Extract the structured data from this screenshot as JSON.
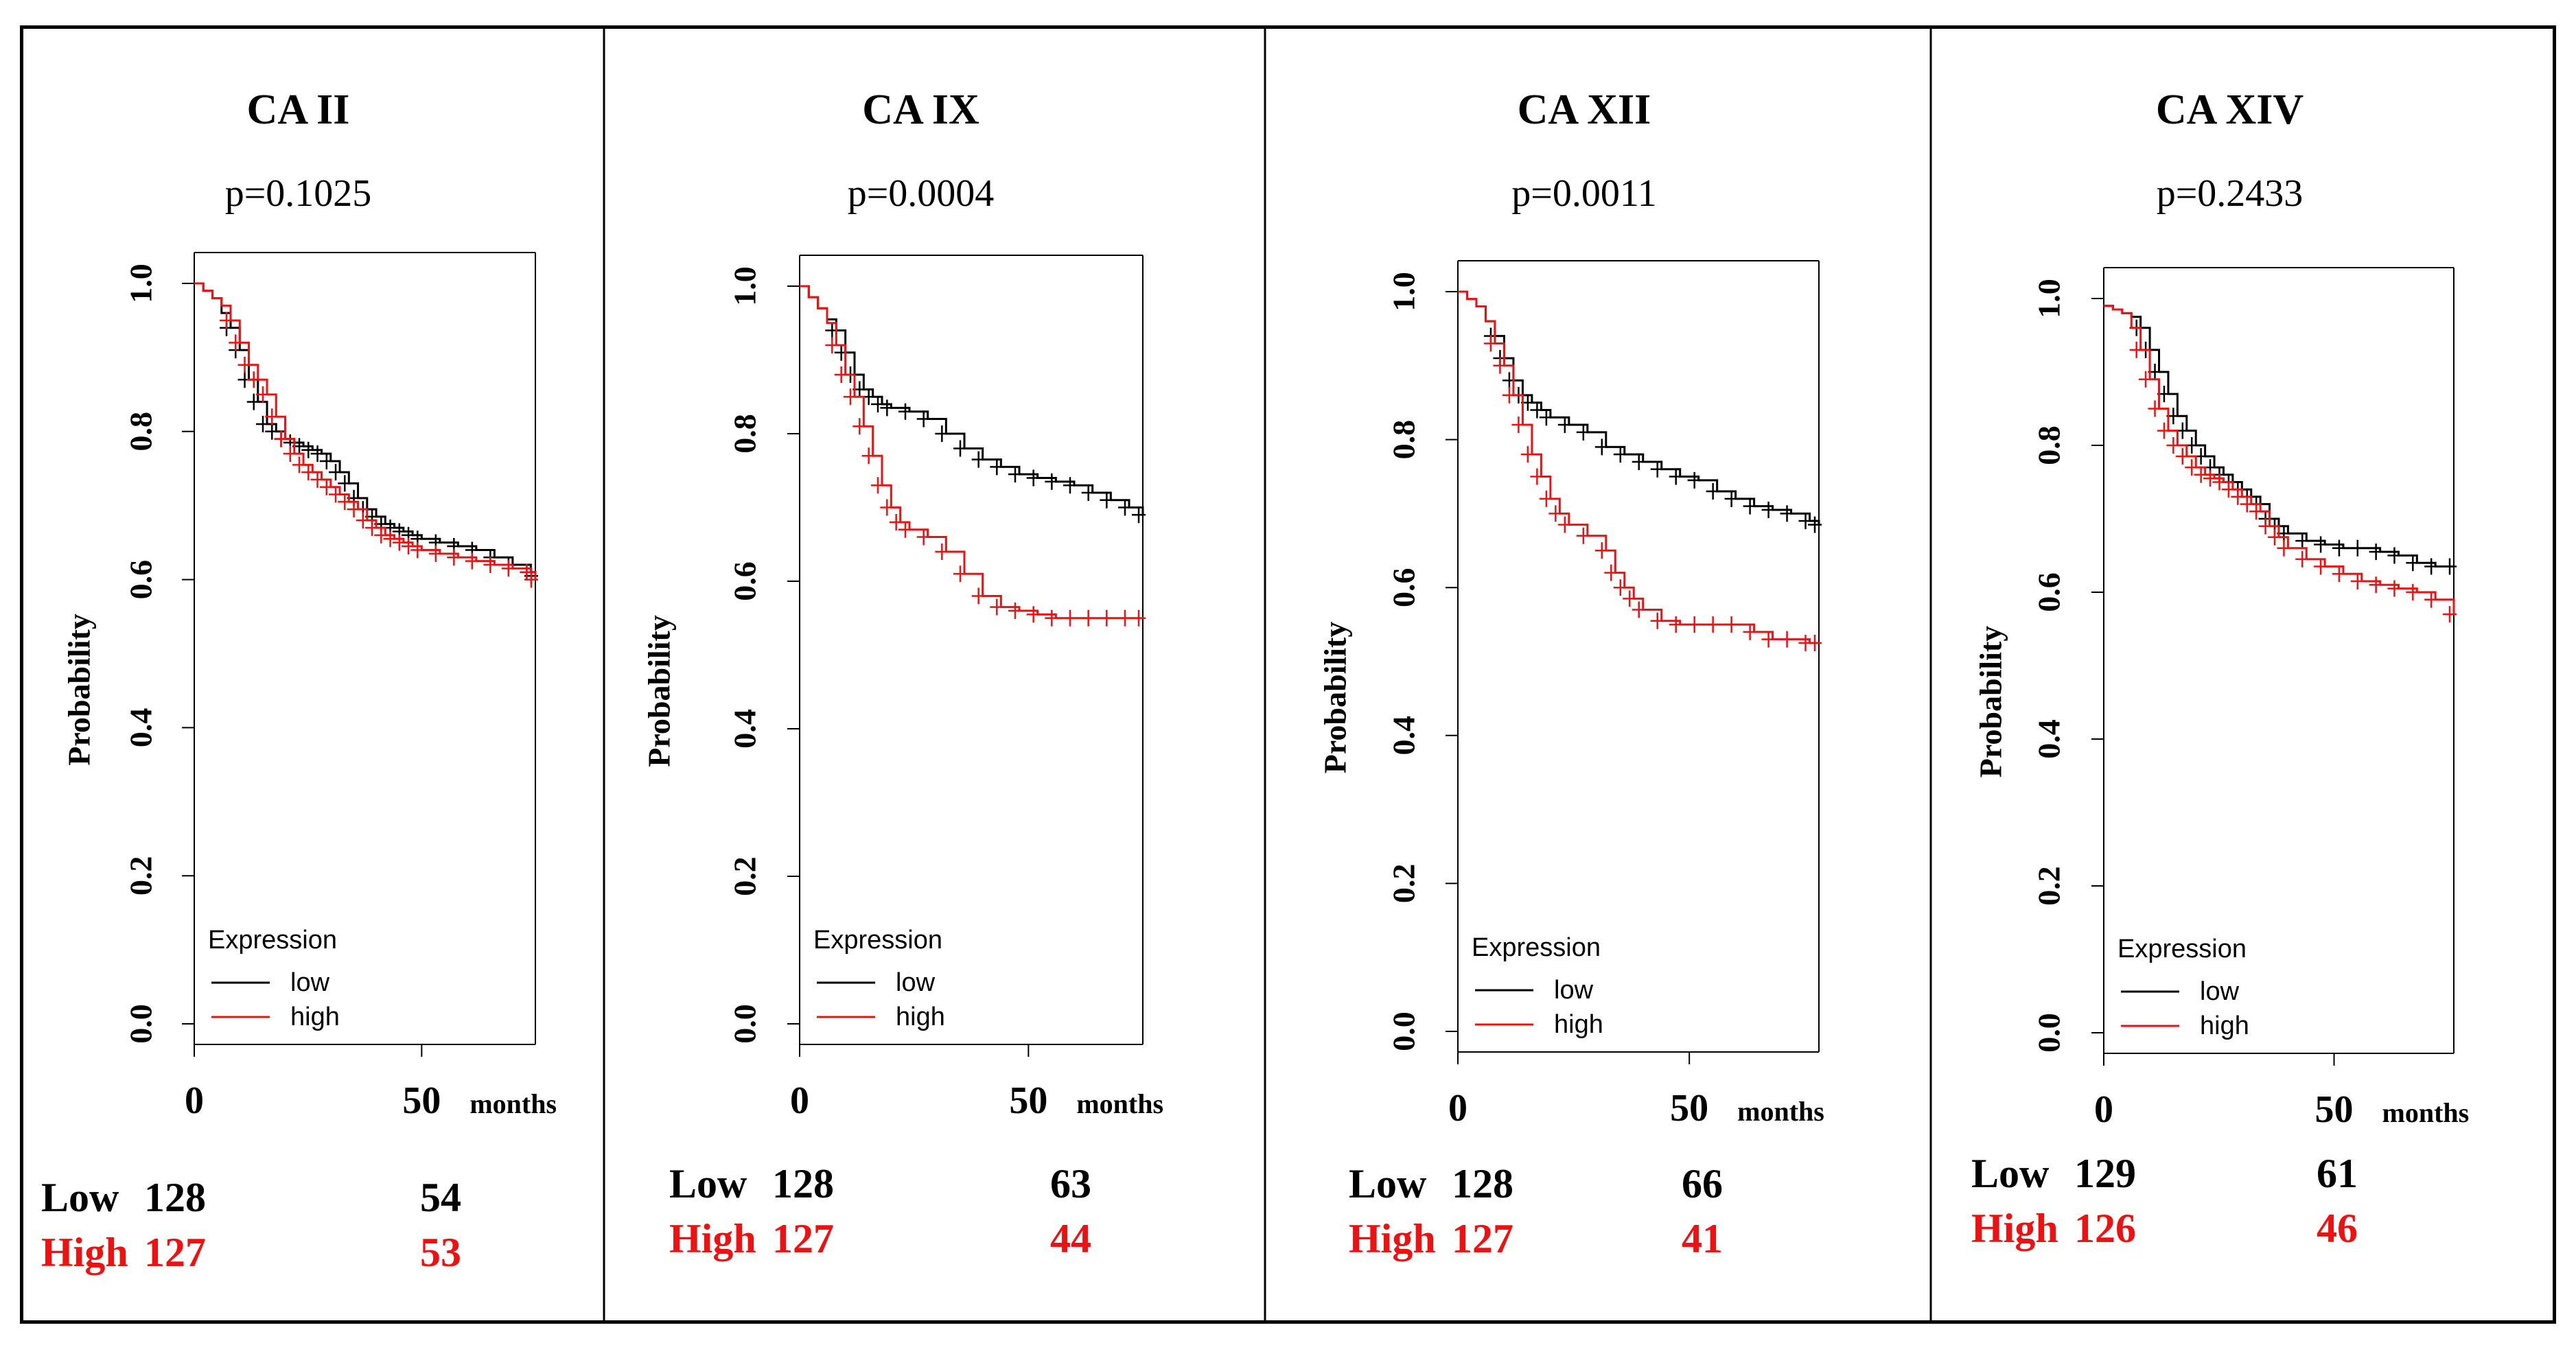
{
  "colors": {
    "low": "#000000",
    "high": "#ee1111"
  },
  "chart_data": [
    {
      "type": "line",
      "title": "CA II",
      "subtitle": "p=0.1025",
      "ylabel": "Probability",
      "xunit": "months",
      "ylim": [
        0,
        1
      ],
      "xlim": [
        0,
        75
      ],
      "yticks": [
        "0.0",
        "0.2",
        "0.4",
        "0.6",
        "0.8",
        "1.0"
      ],
      "xticks": [
        "0",
        "50"
      ],
      "legend": {
        "title": "Expression",
        "items": [
          "low",
          "high"
        ]
      },
      "series": [
        {
          "name": "low",
          "x": [
            0,
            2,
            4,
            6,
            8,
            10,
            12,
            14,
            16,
            18,
            20,
            22,
            24,
            26,
            28,
            30,
            32,
            34,
            36,
            38,
            40,
            42,
            44,
            46,
            48,
            50,
            54,
            58,
            62,
            66,
            70,
            74,
            75
          ],
          "values": [
            1.0,
            0.99,
            0.98,
            0.96,
            0.94,
            0.91,
            0.87,
            0.84,
            0.81,
            0.8,
            0.79,
            0.785,
            0.78,
            0.775,
            0.77,
            0.76,
            0.745,
            0.73,
            0.71,
            0.695,
            0.685,
            0.675,
            0.67,
            0.665,
            0.66,
            0.655,
            0.65,
            0.645,
            0.64,
            0.63,
            0.62,
            0.61,
            0.605
          ]
        },
        {
          "name": "high",
          "x": [
            0,
            2,
            4,
            6,
            8,
            10,
            12,
            14,
            16,
            18,
            20,
            22,
            24,
            26,
            28,
            30,
            32,
            34,
            36,
            38,
            40,
            42,
            44,
            46,
            48,
            50,
            54,
            58,
            62,
            66,
            70,
            74,
            75
          ],
          "values": [
            1.0,
            0.99,
            0.98,
            0.97,
            0.95,
            0.92,
            0.89,
            0.87,
            0.85,
            0.82,
            0.79,
            0.77,
            0.755,
            0.745,
            0.735,
            0.725,
            0.715,
            0.705,
            0.695,
            0.68,
            0.67,
            0.66,
            0.655,
            0.65,
            0.645,
            0.64,
            0.635,
            0.63,
            0.625,
            0.62,
            0.615,
            0.61,
            0.6
          ]
        }
      ],
      "risk_table": {
        "low_label": "Low",
        "low_n0": "128",
        "low_n50": "54",
        "high_label": "High",
        "high_n0": "127",
        "high_n50": "53"
      }
    },
    {
      "type": "line",
      "title": "CA IX",
      "subtitle": "p=0.0004",
      "ylabel": "Probability",
      "xunit": "months",
      "ylim": [
        0,
        1
      ],
      "xlim": [
        0,
        75
      ],
      "yticks": [
        "0.0",
        "0.2",
        "0.4",
        "0.6",
        "0.8",
        "1.0"
      ],
      "xticks": [
        "0",
        "50"
      ],
      "legend": {
        "title": "Expression",
        "items": [
          "low",
          "high"
        ]
      },
      "series": [
        {
          "name": "low",
          "x": [
            0,
            2,
            4,
            6,
            8,
            10,
            12,
            14,
            16,
            18,
            20,
            24,
            28,
            32,
            36,
            40,
            44,
            48,
            52,
            56,
            60,
            64,
            68,
            72,
            75
          ],
          "values": [
            1.0,
            0.985,
            0.97,
            0.955,
            0.94,
            0.91,
            0.88,
            0.86,
            0.85,
            0.84,
            0.835,
            0.83,
            0.82,
            0.8,
            0.78,
            0.765,
            0.755,
            0.745,
            0.74,
            0.735,
            0.73,
            0.72,
            0.71,
            0.7,
            0.69
          ]
        },
        {
          "name": "high",
          "x": [
            0,
            2,
            4,
            6,
            8,
            10,
            12,
            14,
            16,
            18,
            20,
            22,
            24,
            28,
            32,
            36,
            40,
            44,
            48,
            52,
            56,
            60,
            64,
            68,
            72,
            75
          ],
          "values": [
            1.0,
            0.985,
            0.97,
            0.95,
            0.92,
            0.88,
            0.85,
            0.81,
            0.77,
            0.73,
            0.7,
            0.68,
            0.67,
            0.66,
            0.64,
            0.61,
            0.58,
            0.565,
            0.56,
            0.555,
            0.55,
            0.55,
            0.55,
            0.55,
            0.55,
            0.55
          ]
        }
      ],
      "risk_table": {
        "low_label": "Low",
        "low_n0": "128",
        "low_n50": "63",
        "high_label": "High",
        "high_n0": "127",
        "high_n50": "44"
      }
    },
    {
      "type": "line",
      "title": "CA XII",
      "subtitle": "p=0.0011",
      "ylabel": "Probability",
      "xunit": "months",
      "ylim": [
        0,
        1
      ],
      "xlim": [
        0,
        78
      ],
      "yticks": [
        "0.0",
        "0.2",
        "0.4",
        "0.6",
        "0.8",
        "1.0"
      ],
      "xticks": [
        "0",
        "50"
      ],
      "legend": {
        "title": "Expression",
        "items": [
          "low",
          "high"
        ]
      },
      "series": [
        {
          "name": "low",
          "x": [
            0,
            2,
            4,
            6,
            8,
            10,
            12,
            14,
            16,
            18,
            20,
            24,
            28,
            32,
            36,
            40,
            44,
            48,
            52,
            56,
            60,
            64,
            68,
            72,
            76,
            78
          ],
          "values": [
            1.0,
            0.99,
            0.98,
            0.96,
            0.94,
            0.91,
            0.88,
            0.86,
            0.85,
            0.84,
            0.83,
            0.82,
            0.81,
            0.79,
            0.78,
            0.77,
            0.76,
            0.75,
            0.745,
            0.73,
            0.72,
            0.71,
            0.705,
            0.7,
            0.69,
            0.685
          ]
        },
        {
          "name": "high",
          "x": [
            0,
            2,
            4,
            6,
            8,
            10,
            12,
            14,
            16,
            18,
            20,
            22,
            24,
            28,
            32,
            34,
            36,
            38,
            40,
            44,
            48,
            52,
            56,
            60,
            64,
            68,
            72,
            76,
            78
          ],
          "values": [
            1.0,
            0.99,
            0.98,
            0.96,
            0.93,
            0.9,
            0.86,
            0.82,
            0.78,
            0.75,
            0.72,
            0.7,
            0.685,
            0.67,
            0.65,
            0.62,
            0.6,
            0.585,
            0.57,
            0.555,
            0.55,
            0.55,
            0.55,
            0.55,
            0.54,
            0.53,
            0.53,
            0.525,
            0.525
          ]
        }
      ],
      "risk_table": {
        "low_label": "Low",
        "low_n0": "128",
        "low_n50": "66",
        "high_label": "High",
        "high_n0": "127",
        "high_n50": "41"
      }
    },
    {
      "type": "line",
      "title": "CA XIV",
      "subtitle": "p=0.2433",
      "ylabel": "Probability",
      "xunit": "months",
      "ylim": [
        0,
        1
      ],
      "xlim": [
        0,
        76
      ],
      "yticks": [
        "0.0",
        "0.2",
        "0.4",
        "0.6",
        "0.8",
        "1.0"
      ],
      "xticks": [
        "0",
        "50"
      ],
      "legend": {
        "title": "Expression",
        "items": [
          "low",
          "high"
        ]
      },
      "series": [
        {
          "name": "low",
          "x": [
            0,
            2,
            4,
            6,
            8,
            10,
            12,
            14,
            16,
            18,
            20,
            22,
            24,
            26,
            28,
            30,
            32,
            34,
            36,
            38,
            40,
            44,
            48,
            52,
            56,
            60,
            64,
            68,
            72,
            76
          ],
          "values": [
            0.99,
            0.985,
            0.98,
            0.975,
            0.96,
            0.93,
            0.9,
            0.87,
            0.84,
            0.82,
            0.8,
            0.785,
            0.77,
            0.76,
            0.75,
            0.74,
            0.73,
            0.72,
            0.7,
            0.69,
            0.68,
            0.67,
            0.665,
            0.66,
            0.66,
            0.655,
            0.65,
            0.64,
            0.635,
            0.635
          ]
        },
        {
          "name": "high",
          "x": [
            0,
            2,
            4,
            6,
            8,
            10,
            12,
            14,
            16,
            18,
            20,
            22,
            24,
            26,
            28,
            30,
            32,
            34,
            36,
            38,
            40,
            44,
            48,
            52,
            56,
            60,
            64,
            68,
            72,
            76
          ],
          "values": [
            0.99,
            0.985,
            0.98,
            0.96,
            0.93,
            0.89,
            0.85,
            0.82,
            0.8,
            0.785,
            0.77,
            0.76,
            0.755,
            0.75,
            0.74,
            0.73,
            0.72,
            0.71,
            0.69,
            0.675,
            0.66,
            0.645,
            0.635,
            0.625,
            0.615,
            0.61,
            0.605,
            0.6,
            0.59,
            0.57
          ]
        }
      ],
      "risk_table": {
        "low_label": "Low",
        "low_n0": "129",
        "low_n50": "61",
        "high_label": "High",
        "high_n0": "126",
        "high_n50": "46"
      }
    }
  ]
}
